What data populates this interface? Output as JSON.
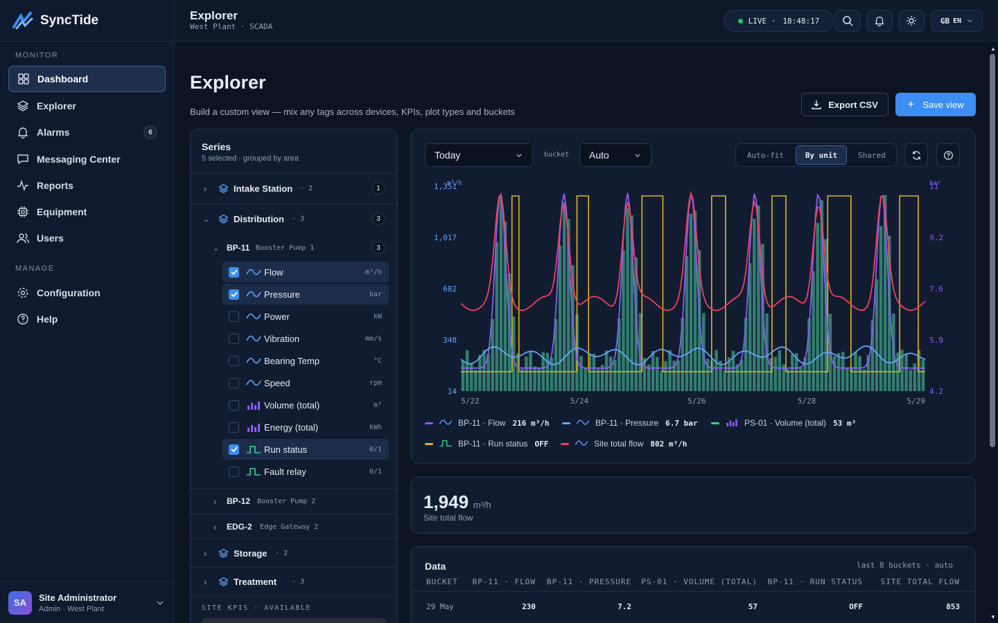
{
  "brand": {
    "name": "SyncTide"
  },
  "sidebar": {
    "monitor_label": "MONITOR",
    "items": [
      {
        "label": "Dashboard"
      },
      {
        "label": "Explorer"
      },
      {
        "label": "Alarms",
        "badge": "6"
      },
      {
        "label": "Messaging Center"
      },
      {
        "label": "Reports"
      },
      {
        "label": "Equipment"
      },
      {
        "label": "Users"
      }
    ],
    "manage_label": "MANAGE",
    "manage_items": [
      {
        "label": "Configuration"
      },
      {
        "label": "Help"
      }
    ]
  },
  "user": {
    "initials": "SA",
    "name": "Site Administrator",
    "role": "Admin · West Plant"
  },
  "topbar": {
    "title": "Explorer",
    "subtitle": "West Plant · SCADA",
    "live": "LIVE ·",
    "time": "18:48:17",
    "flag": "GB",
    "lang": "EN"
  },
  "page": {
    "title": "Explorer",
    "description": "Build a custom view — mix any tags across devices, KPIs, plot types and buckets",
    "export_label": "Export CSV",
    "save_label": "Save view"
  },
  "series": {
    "title": "Series",
    "subtitle": "5 selected · grouped by area",
    "areas": [
      {
        "name": "Intake Station",
        "count": "· 2",
        "badge": "1"
      },
      {
        "name": "Distribution",
        "count": "· 3",
        "badge": "3"
      }
    ],
    "device": {
      "id": "BP-11",
      "name": "Booster Pump 1",
      "badge": "3"
    },
    "tags": [
      {
        "label": "Flow",
        "unit": "m³/h",
        "selected": true
      },
      {
        "label": "Pressure",
        "unit": "bar",
        "selected": true
      },
      {
        "label": "Power",
        "unit": "kW",
        "selected": false
      },
      {
        "label": "Vibration",
        "unit": "mm/s",
        "selected": false
      },
      {
        "label": "Bearing Temp",
        "unit": "°C",
        "selected": false
      },
      {
        "label": "Speed",
        "unit": "rpm",
        "selected": false
      },
      {
        "label": "Volume (total)",
        "unit": "m³",
        "selected": false
      },
      {
        "label": "Energy (total)",
        "unit": "kWh",
        "selected": false
      },
      {
        "label": "Run status",
        "unit": "0/1",
        "selected": true
      },
      {
        "label": "Fault relay",
        "unit": "0/1",
        "selected": false
      }
    ],
    "devices": [
      {
        "id": "BP-12",
        "name": "Booster Pump 2"
      },
      {
        "id": "EDG-2",
        "name": "Edge Gateway 2"
      }
    ],
    "areas2": [
      {
        "name": "Storage",
        "count": "· 2"
      },
      {
        "name": "Treatment",
        "count": "· 3"
      }
    ],
    "kpis_label": "SITE KPIS · AVAILABLE"
  },
  "controls": {
    "range": "Today",
    "bucket_label": "bucket",
    "bucket": "Auto",
    "modes": [
      "Auto-fit",
      "By unit",
      "Shared"
    ],
    "active_mode": "By unit"
  },
  "chart_data": {
    "type": "line",
    "x_ticks": [
      "5/22",
      "5/24",
      "5/26",
      "5/28",
      "5/29"
    ],
    "y_left": {
      "unit": "m³/h",
      "ticks": [
        "14",
        "348",
        "682",
        "1,017",
        "1,351"
      ]
    },
    "y_right": {
      "unit": "bar",
      "ticks": [
        "4.2",
        "5.9",
        "7.6",
        "9.2",
        "11"
      ]
    },
    "series": [
      {
        "name": "BP-11 · Flow",
        "value": "216 m³/h",
        "color": "#8b5cf6"
      },
      {
        "name": "BP-11 · Pressure",
        "value": "6.7 bar",
        "color": "#60a5fa"
      },
      {
        "name": "PS-01 · Volume (total)",
        "value": "53 m³",
        "color": "#34d399"
      },
      {
        "name": "BP-11 · Run status",
        "value": "OFF",
        "color": "#eab308"
      },
      {
        "name": "Site total flow",
        "value": "802 m³/h",
        "color": "#f43f5e"
      }
    ]
  },
  "kpi": {
    "value": "1,949",
    "unit": "m³/h",
    "label": "Site total flow"
  },
  "table": {
    "title": "Data",
    "meta": "last 8 buckets · auto",
    "headers": [
      "BUCKET",
      "BP-11 · FLOW",
      "BP-11 · PRESSURE",
      "PS-01 · VOLUME (TOTAL)",
      "BP-11 · RUN STATUS",
      "SITE TOTAL FLOW"
    ],
    "rows": [
      [
        "29 May",
        "230",
        "7.2",
        "57",
        "OFF",
        "853"
      ]
    ]
  },
  "colors": {
    "accent": "#3d8ef2",
    "bg": "#0c1424"
  }
}
